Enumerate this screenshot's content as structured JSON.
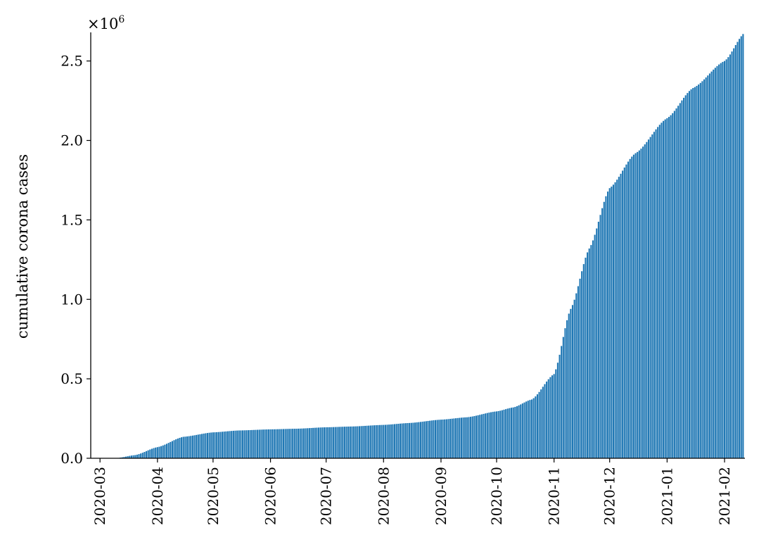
{
  "chart_data": {
    "type": "bar",
    "title": "",
    "xlabel": "",
    "ylabel": "cumulative corona cases",
    "y_scale_label": "×10^6",
    "y_scale_base": "×10",
    "y_scale_exp": "6",
    "ylim": [
      0,
      2680000
    ],
    "xlim": [
      "2020-02-25",
      "2021-02-12"
    ],
    "grid": false,
    "legend": "none",
    "bar_color": "#1f77b4",
    "x_tick_labels": [
      "2020-03",
      "2020-04",
      "2020-05",
      "2020-06",
      "2020-07",
      "2020-08",
      "2020-09",
      "2020-10",
      "2020-11",
      "2020-12",
      "2021-01",
      "2021-02"
    ],
    "x_tick_dates": [
      "2020-03-01",
      "2020-04-01",
      "2020-05-01",
      "2020-06-01",
      "2020-07-01",
      "2020-08-01",
      "2020-09-01",
      "2020-10-01",
      "2020-11-01",
      "2020-12-01",
      "2021-01-01",
      "2021-02-01"
    ],
    "y_tick_labels": [
      "0.0",
      "0.5",
      "1.0",
      "1.5",
      "2.0",
      "2.5"
    ],
    "y_tick_values": [
      0,
      500000,
      1000000,
      1500000,
      2000000,
      2500000
    ],
    "series": [
      {
        "values_note": "estimated cumulative cases at first of each month; daily bars interpolated between these anchor points",
        "x": [
          "2020-03-01",
          "2020-03-10",
          "2020-03-20",
          "2020-04-01",
          "2020-04-15",
          "2020-05-01",
          "2020-05-15",
          "2020-06-01",
          "2020-06-15",
          "2020-07-01",
          "2020-07-15",
          "2020-08-01",
          "2020-08-15",
          "2020-09-01",
          "2020-09-15",
          "2020-10-01",
          "2020-10-10",
          "2020-10-20",
          "2020-11-01",
          "2020-11-10",
          "2020-11-20",
          "2020-12-01",
          "2020-12-15",
          "2021-01-01",
          "2021-01-15",
          "2021-02-01",
          "2021-02-12"
        ],
        "values": [
          130,
          1200,
          20000,
          70000,
          135000,
          163000,
          175000,
          182000,
          186000,
          195000,
          200000,
          210000,
          222000,
          243000,
          258000,
          295000,
          320000,
          370000,
          530000,
          940000,
          1320000,
          1700000,
          1920000,
          2140000,
          2330000,
          2500000,
          2680000
        ]
      }
    ]
  }
}
